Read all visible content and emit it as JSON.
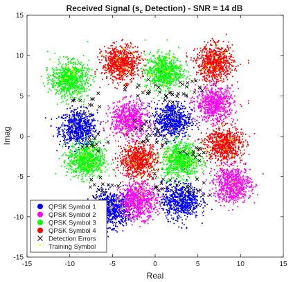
{
  "chart_data": {
    "type": "scatter",
    "title": "Received Signal (s",
    "title_subscript": "c",
    "title_rest": " Detection) - SNR = 14 dB",
    "xlabel": "Real",
    "ylabel": "Imag",
    "xlim": [
      -15,
      15
    ],
    "ylim": [
      -15,
      15
    ],
    "xticks": [
      -15,
      -10,
      -5,
      0,
      5,
      10,
      15
    ],
    "yticks": [
      -15,
      -10,
      -5,
      0,
      5,
      10,
      15
    ],
    "grid": false,
    "legend_position": "bottom-left",
    "cluster_std": 1.1,
    "points_per_cluster": 700,
    "training_per_cluster": 14,
    "series": [
      {
        "name": "QPSK Symbol 1",
        "color": "#0000ff",
        "marker": "dot",
        "centers": [
          [
            -9,
            1
          ],
          [
            -5,
            -9
          ],
          [
            2,
            2
          ],
          [
            3,
            -8
          ]
        ]
      },
      {
        "name": "QPSK Symbol 2",
        "color": "#ff00ff",
        "marker": "dot",
        "centers": [
          [
            -3,
            2
          ],
          [
            -2,
            -8
          ],
          [
            7,
            4
          ],
          [
            9,
            -6
          ]
        ]
      },
      {
        "name": "QPSK Symbol 3",
        "color": "#00ff00",
        "marker": "dot",
        "centers": [
          [
            -10,
            7
          ],
          [
            -8,
            -3
          ],
          [
            1,
            8
          ],
          [
            3,
            -3
          ]
        ]
      },
      {
        "name": "QPSK Symbol 4",
        "color": "#ff0000",
        "marker": "dot",
        "centers": [
          [
            -4,
            9
          ],
          [
            -2,
            -3
          ],
          [
            7,
            9
          ],
          [
            8,
            -1
          ]
        ]
      },
      {
        "name": "Detection Errors",
        "color": "#000000",
        "marker": "x",
        "regions": [
          [
            -8.5,
            4
          ],
          [
            -7.5,
            -1
          ],
          [
            -1.5,
            6
          ],
          [
            4.5,
            6
          ],
          [
            -0.5,
            -0.5
          ],
          [
            5,
            -2
          ],
          [
            5,
            -6.5
          ],
          [
            1,
            -6
          ],
          [
            -6,
            -6
          ],
          [
            1.5,
            5
          ],
          [
            -1,
            1
          ]
        ]
      },
      {
        "name": "Training Symbol",
        "color": "#ffff00",
        "marker": "star"
      }
    ]
  }
}
